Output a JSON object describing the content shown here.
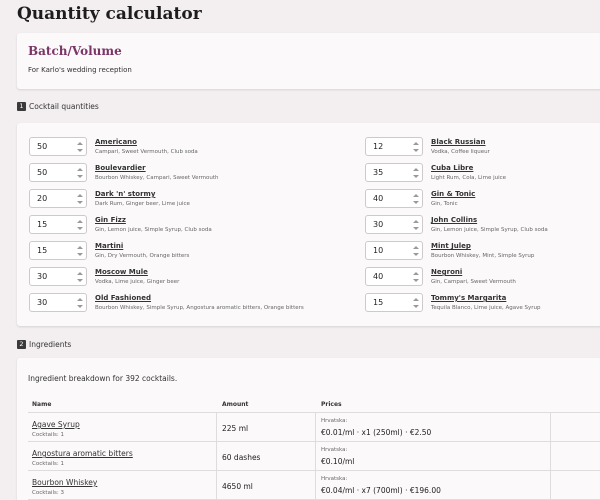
{
  "page_title": "Quantity calculator",
  "batch": {
    "title": "Batch/Volume",
    "description": "For Karlo's wedding reception"
  },
  "sections": {
    "cocktails": {
      "number": "1",
      "label": "Cocktail quantities"
    },
    "ingredients": {
      "number": "2",
      "label": "Ingredients"
    }
  },
  "cocktails": [
    {
      "qty": "50",
      "name": "Americano",
      "ingredients": "Campari, Sweet Vermouth, Club soda"
    },
    {
      "qty": "50",
      "name": "Boulevardier",
      "ingredients": "Bourbon Whiskey, Campari, Sweet Vermouth"
    },
    {
      "qty": "20",
      "name": "Dark 'n' stormy",
      "ingredients": "Dark Rum, Ginger beer, Lime juice"
    },
    {
      "qty": "15",
      "name": "Gin Fizz",
      "ingredients": "Gin, Lemon juice, Simple Syrup, Club soda"
    },
    {
      "qty": "15",
      "name": "Martini",
      "ingredients": "Gin, Dry Vermouth, Orange bitters"
    },
    {
      "qty": "30",
      "name": "Moscow Mule",
      "ingredients": "Vodka, Lime juice, Ginger beer"
    },
    {
      "qty": "30",
      "name": "Old Fashioned",
      "ingredients": "Bourbon Whiskey, Simple Syrup, Angostura aromatic bitters, Orange bitters"
    },
    {
      "qty": "12",
      "name": "Black Russian",
      "ingredients": "Vodka, Coffee liqueur"
    },
    {
      "qty": "35",
      "name": "Cuba Libre",
      "ingredients": "Light Rum, Cola, Lime juice"
    },
    {
      "qty": "40",
      "name": "Gin & Tonic",
      "ingredients": "Gin, Tonic"
    },
    {
      "qty": "30",
      "name": "John Collins",
      "ingredients": "Gin, Lemon juice, Simple Syrup, Club soda"
    },
    {
      "qty": "10",
      "name": "Mint Julep",
      "ingredients": "Bourbon Whiskey, Mint, Simple Syrup"
    },
    {
      "qty": "40",
      "name": "Negroni",
      "ingredients": "Gin, Campari, Sweet Vermouth"
    },
    {
      "qty": "15",
      "name": "Tommy's Margarita",
      "ingredients": "Tequila Blanco, Lime juice, Agave Syrup"
    }
  ],
  "ingredients": {
    "summary": "Ingredient breakdown for 392 cocktails.",
    "headers": {
      "name": "Name",
      "amount": "Amount",
      "prices": "Prices"
    },
    "rows": [
      {
        "name": "Agave Syrup",
        "count": "Cocktails: 1",
        "amount": "225 ml",
        "vendor": "Hrvatska:",
        "price": "€0.01/ml · x1 (250ml) · €2.50"
      },
      {
        "name": "Angostura aromatic bitters",
        "count": "Cocktails: 1",
        "amount": "60 dashes",
        "vendor": "Hrvatska:",
        "price": "€0.10/ml"
      },
      {
        "name": "Bourbon Whiskey",
        "count": "Cocktails: 3",
        "amount": "4650 ml",
        "vendor": "Hrvatska:",
        "price": "€0.04/ml · x7 (700ml) · €196.00"
      }
    ]
  },
  "colors": {
    "accent": "#7a3566",
    "background": "#f3eff1",
    "card": "#fbf9fa"
  }
}
